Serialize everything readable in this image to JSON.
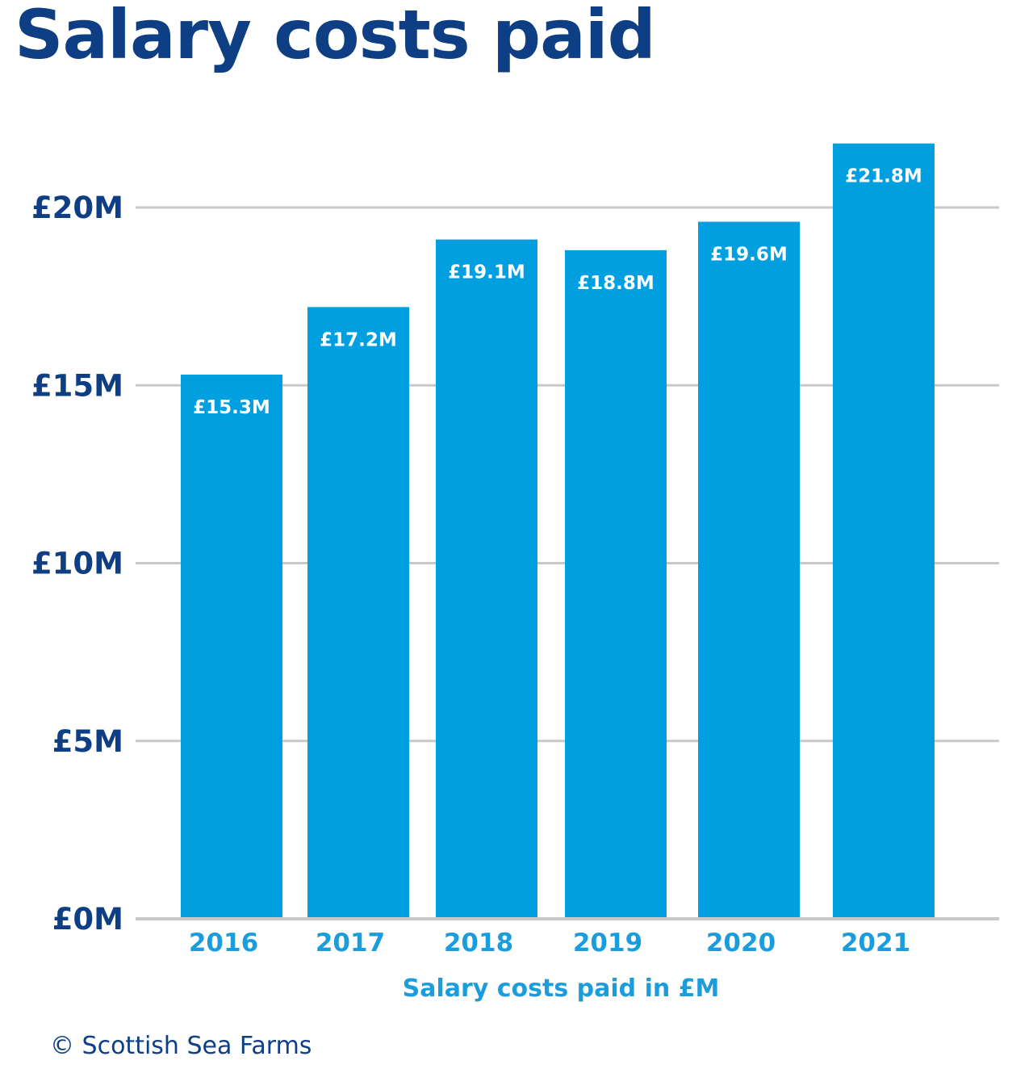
{
  "chart_data": {
    "type": "bar",
    "title": "Salary costs paid",
    "xlabel": "Salary costs paid in £M",
    "ylabel": "",
    "categories": [
      "2016",
      "2017",
      "2018",
      "2019",
      "2020",
      "2021"
    ],
    "values": [
      15.3,
      17.2,
      19.1,
      18.8,
      19.6,
      21.8
    ],
    "value_labels": [
      "£15.3M",
      "£17.2M",
      "£19.1M",
      "£18.8M",
      "£19.6M",
      "£21.8M"
    ],
    "ylim": [
      0,
      20
    ],
    "yticks": [
      0,
      5,
      10,
      15,
      20
    ],
    "ytick_labels": [
      "£0M",
      "£5M",
      "£10M",
      "£15M",
      "£20M"
    ],
    "grid": true,
    "legend": "none",
    "colors": {
      "bar": "#009fe0",
      "title": "#0e3e83",
      "ytick": "#0e3e83",
      "xtick": "#1b9ddc",
      "grid": "#c8c8c8",
      "bar_label": "#ffffff"
    }
  },
  "footer": {
    "copyright": "© Scottish Sea Farms"
  }
}
